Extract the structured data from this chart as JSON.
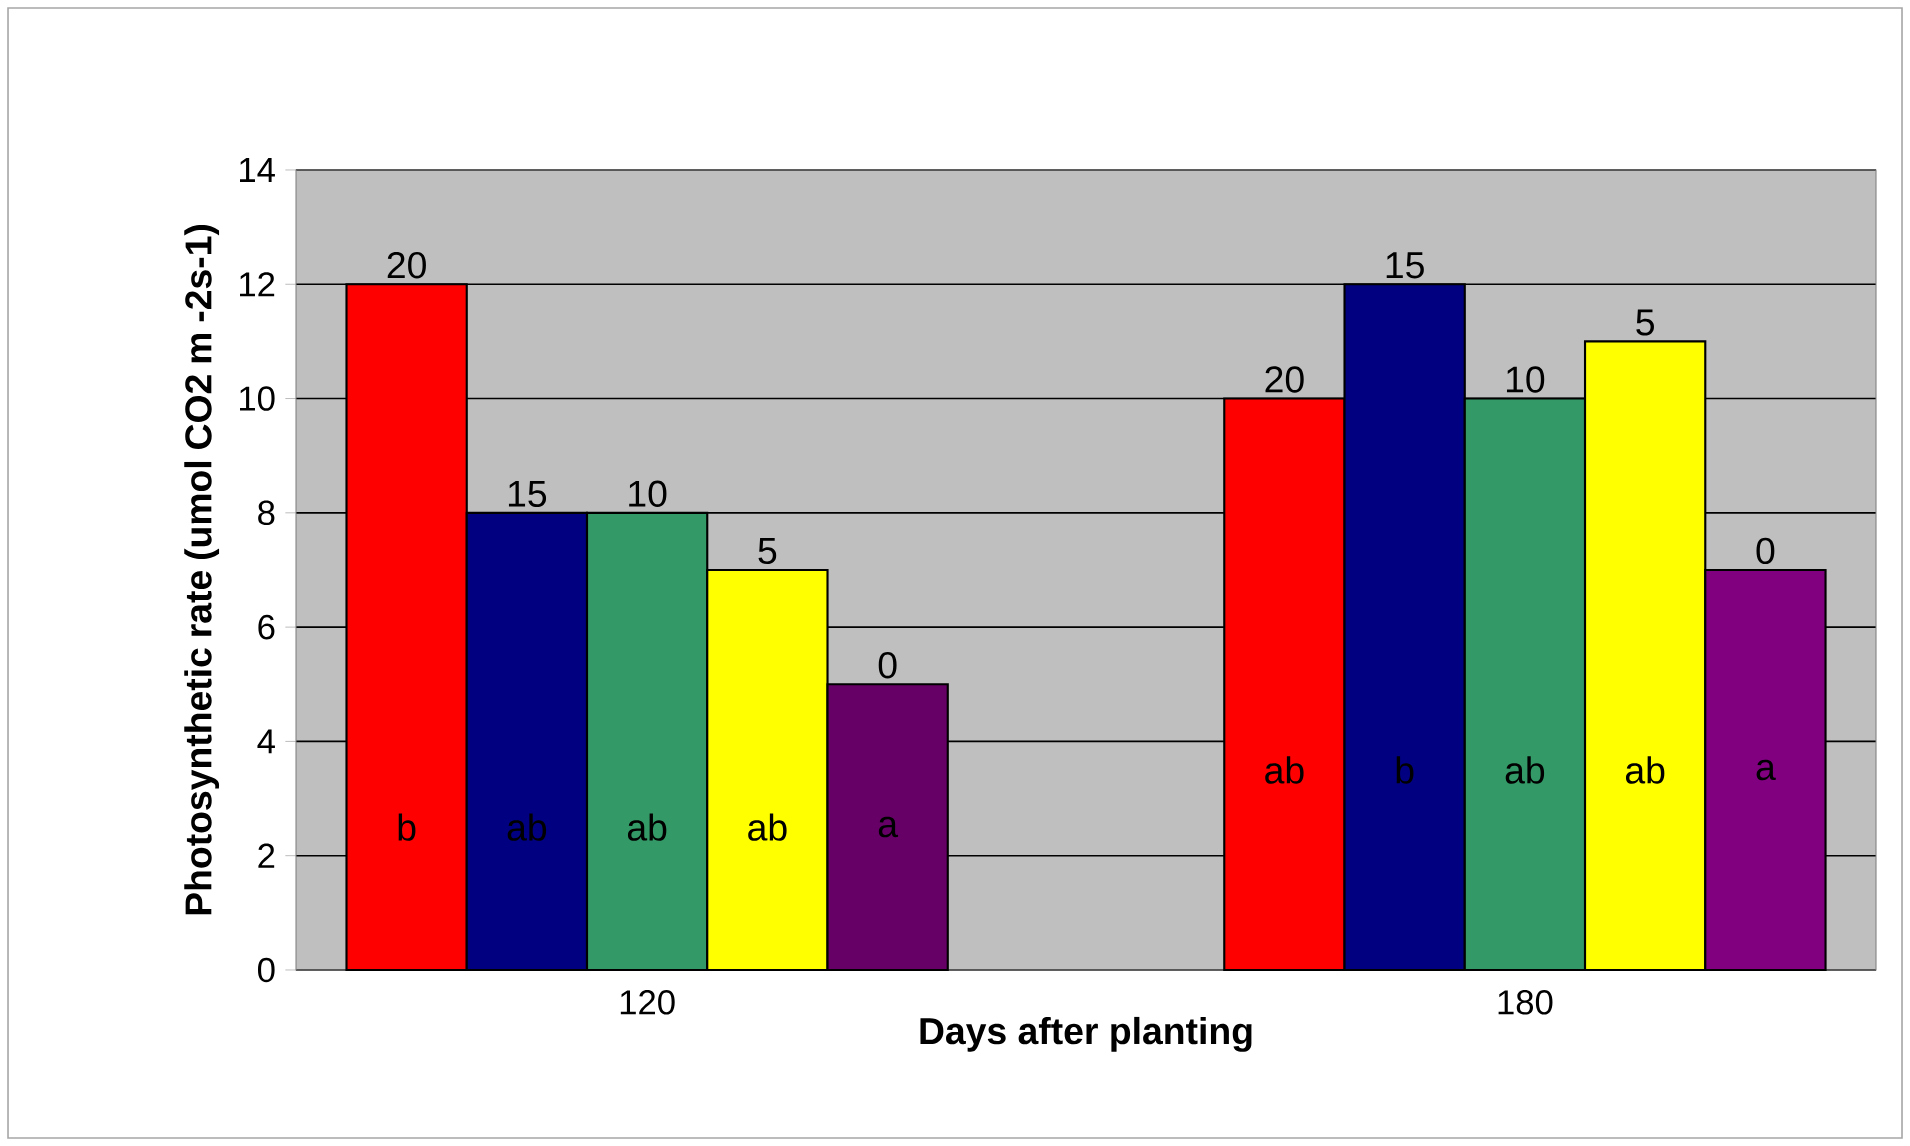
{
  "chart_data": {
    "type": "bar",
    "xlabel": "Days after planting",
    "ylabel": "Photosynthetic rate (umol CO2 m -2s-1)",
    "categories": [
      "120",
      "180"
    ],
    "series": [
      {
        "name": "20",
        "color": "#ff0000",
        "values": [
          12,
          10
        ],
        "value_labels": [
          "b",
          "ab"
        ]
      },
      {
        "name": "15",
        "color": "#000080",
        "values": [
          8,
          12
        ],
        "value_labels": [
          "ab",
          "b"
        ]
      },
      {
        "name": "10",
        "color": "#339966",
        "values": [
          8,
          10
        ],
        "value_labels": [
          "ab",
          "ab"
        ]
      },
      {
        "name": "5",
        "color": "#ffff00",
        "values": [
          7,
          11
        ],
        "value_labels": [
          "ab",
          "ab"
        ]
      },
      {
        "name": "0",
        "colors": [
          "#660066",
          "#800080"
        ],
        "values": [
          5,
          7
        ],
        "value_labels": [
          "a",
          "a"
        ]
      }
    ],
    "ylim": [
      0,
      14
    ],
    "yticks": [
      0,
      2,
      4,
      6,
      8,
      10,
      12,
      14
    ],
    "grid": "y"
  }
}
